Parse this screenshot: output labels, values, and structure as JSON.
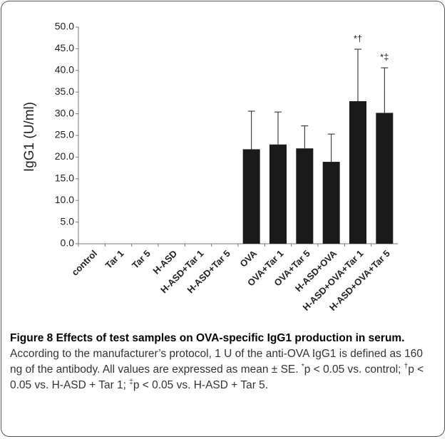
{
  "chart_data": {
    "type": "bar",
    "ylabel": "IgG1 (U/ml)",
    "categories": [
      "control",
      "Tar 1",
      "Tar 5",
      "H-ASD",
      "H-ASD+Tar 1",
      "H-ASD+Tar 5",
      "OVA",
      "OVA+Tar 1",
      "OVA+Tar 5",
      "H-ASD+OVA",
      "H-ASD+OVA+Tar 1",
      "H-ASD+OVA+Tar 5"
    ],
    "values": [
      0,
      0,
      0,
      0,
      0,
      0,
      21.8,
      22.9,
      22.0,
      18.9,
      32.9,
      30.2
    ],
    "errors": [
      0,
      0,
      0,
      0,
      0,
      0,
      8.8,
      7.5,
      5.2,
      6.4,
      12.0,
      10.4
    ],
    "annotations": [
      null,
      null,
      null,
      null,
      null,
      null,
      null,
      null,
      null,
      null,
      "*†",
      "*‡"
    ],
    "color": "#1a1a1a",
    "ylim": [
      0,
      50
    ],
    "yticks": [
      {
        "value": 0,
        "label": "0.0"
      },
      {
        "value": 5,
        "label": "5.0"
      },
      {
        "value": 10,
        "label": "10.0"
      },
      {
        "value": 15,
        "label": "15.0"
      },
      {
        "value": 20,
        "label": "20.0"
      },
      {
        "value": 25,
        "label": "25.0"
      },
      {
        "value": 30,
        "label": "30.0"
      },
      {
        "value": 35,
        "label": "35.0"
      },
      {
        "value": 40,
        "label": "40.0"
      },
      {
        "value": 45,
        "label": "45.0"
      },
      {
        "value": 50,
        "label": "50.0"
      }
    ],
    "grid": false
  },
  "caption": {
    "title": "Figure 8 Effects of test samples on OVA-specific IgG1 production in serum.",
    "body": [
      "According to the manufacturer’s protocol, 1 U of the anti-OVA IgG1 is defined as 160 ng of the antibody. All values are expressed as mean ± SE. ",
      "*",
      "p < 0.05 vs. control; ",
      "†",
      "p < 0.05 vs. H-ASD + Tar 1; ",
      "‡",
      "p < 0.05 vs. H-ASD + Tar 5."
    ]
  }
}
